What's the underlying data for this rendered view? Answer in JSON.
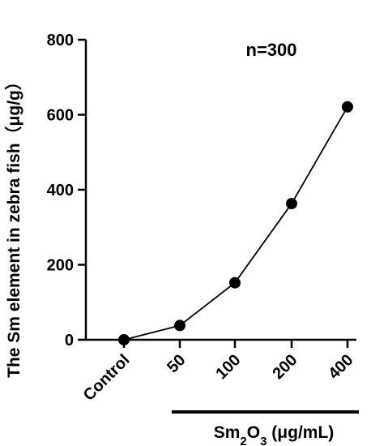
{
  "chart_data": {
    "type": "line",
    "categories": [
      "Control",
      "50",
      "100",
      "200",
      "400"
    ],
    "values": [
      0,
      38,
      152,
      363,
      621
    ],
    "ylabel": "The Sm element in zebra fish（μg/g）",
    "xlabel": {
      "prefix": "Sm",
      "sub1": "2",
      "mid": "O",
      "sub2": "3",
      "suffix": " (μg/mL)"
    },
    "annotation": "n=300",
    "ylim": [
      0,
      800
    ],
    "yticks": [
      0,
      200,
      400,
      600,
      800
    ],
    "grid": false,
    "marker": "filled-circle",
    "colors": {
      "line": "#000000",
      "marker": "#000000"
    }
  }
}
